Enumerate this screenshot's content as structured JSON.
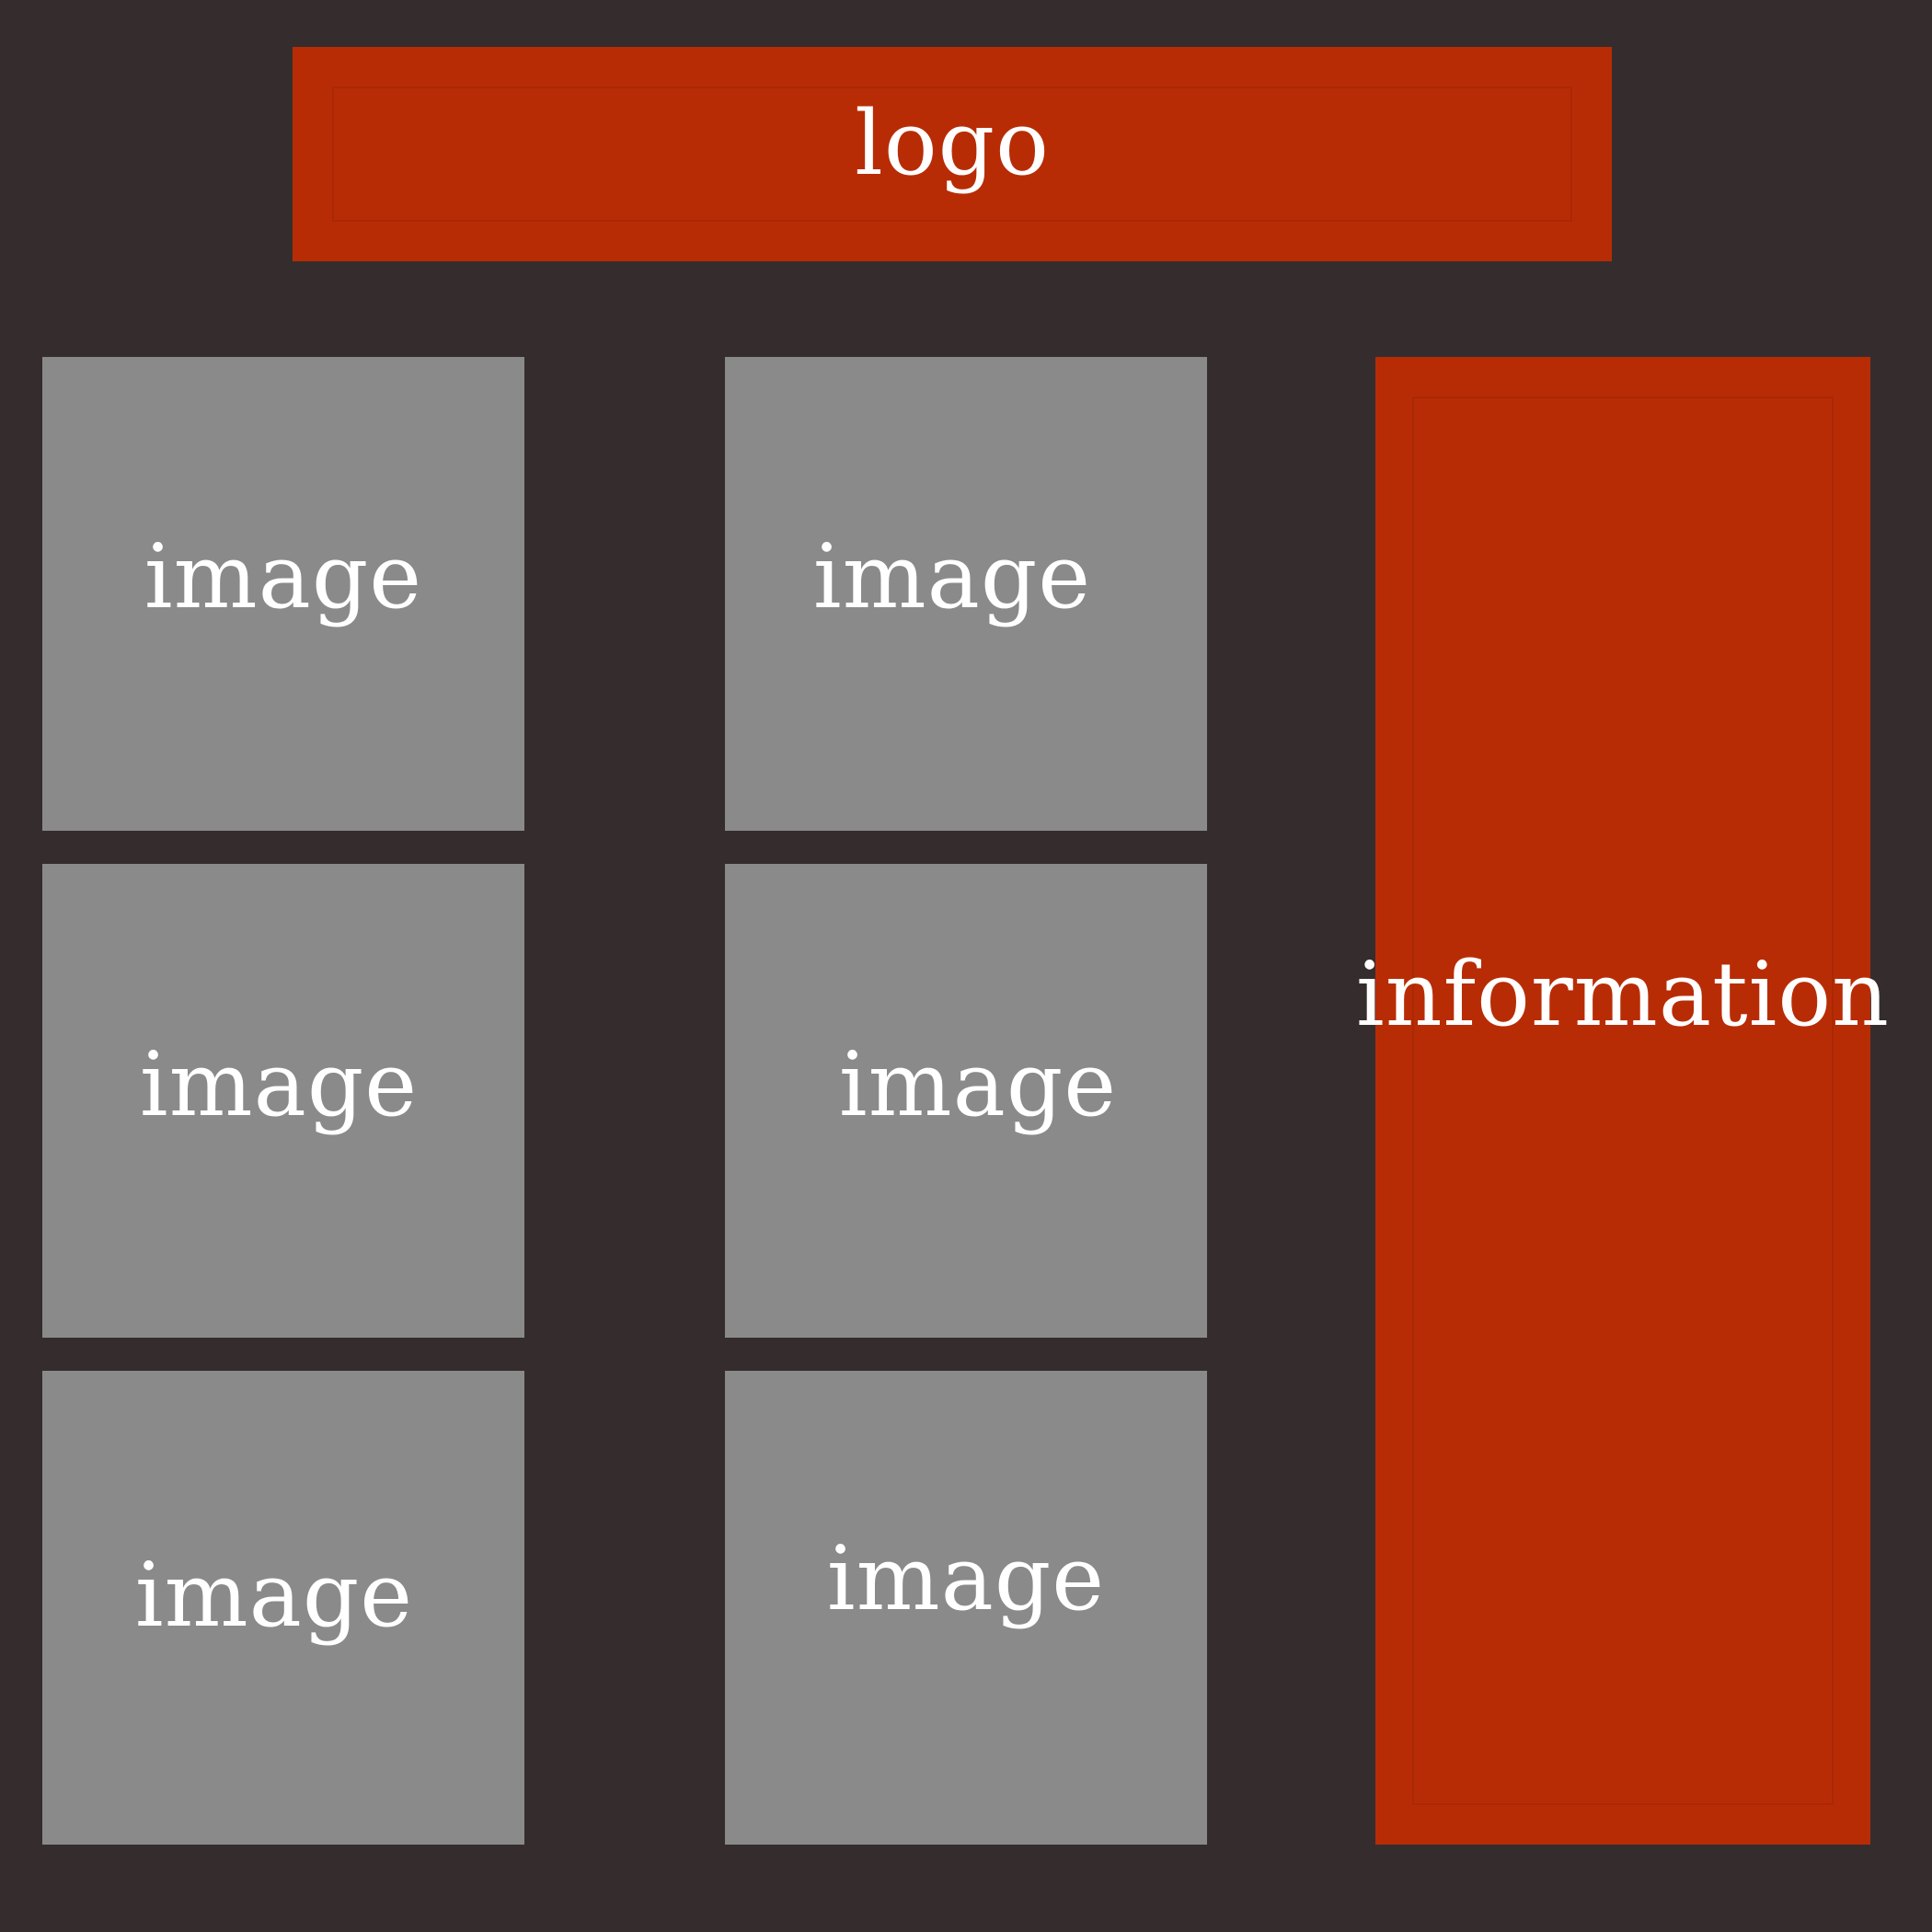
{
  "header": {
    "logo_label": "logo"
  },
  "grid": {
    "tiles": [
      {
        "label": "image"
      },
      {
        "label": "image"
      },
      {
        "label": "image"
      },
      {
        "label": "image"
      },
      {
        "label": "image"
      },
      {
        "label": "image"
      }
    ]
  },
  "sidebar": {
    "info_label": "information"
  },
  "colors": {
    "background": "#352d2d",
    "accent": "#b82c05",
    "tile": "#8a8a8a",
    "text": "#ffffff"
  }
}
